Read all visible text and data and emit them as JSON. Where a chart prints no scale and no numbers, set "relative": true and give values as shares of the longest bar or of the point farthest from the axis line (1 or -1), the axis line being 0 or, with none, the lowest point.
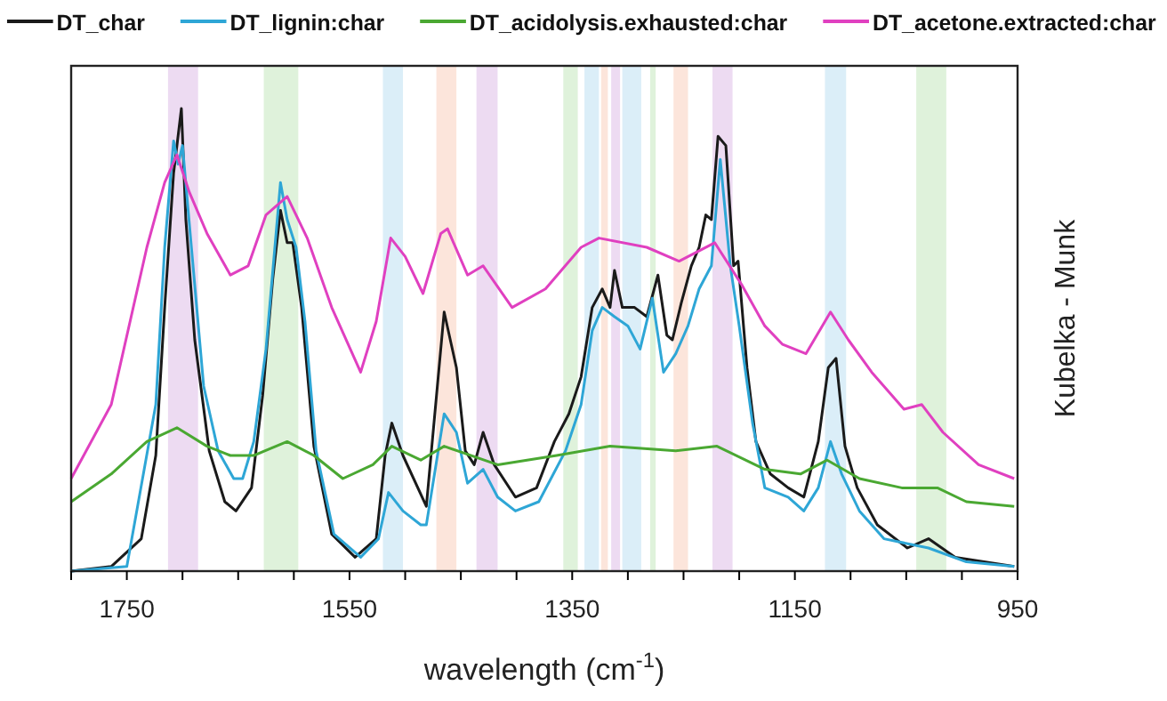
{
  "chart_data": {
    "type": "line",
    "relative": true,
    "xlabel": "wavelength (cm$^{-1}$)",
    "ylabel": "Kubelka - Munk",
    "legend": "top",
    "grid": false,
    "xlim": [
      1800,
      950
    ],
    "xticks": [
      {
        "value": 1800,
        "label": null
      },
      1750,
      {
        "value": 1700,
        "label": null
      },
      {
        "value": 1650,
        "label": null
      },
      {
        "value": 1600,
        "label": null
      },
      1550,
      {
        "value": 1500,
        "label": null
      },
      {
        "value": 1450,
        "label": null
      },
      {
        "value": 1400,
        "label": null
      },
      1350,
      {
        "value": 1300,
        "label": null
      },
      {
        "value": 1250,
        "label": null
      },
      {
        "value": 1200,
        "label": null
      },
      1150,
      {
        "value": 1100,
        "label": null
      },
      {
        "value": 1050,
        "label": null
      },
      {
        "value": 1000,
        "label": null
      },
      950
    ],
    "bands": [
      {
        "axis": "x",
        "from": 1686,
        "to": 1713,
        "color": "#ead5f0"
      },
      {
        "axis": "x",
        "from": 1596,
        "to": 1627,
        "color": "#d9f0d5"
      },
      {
        "axis": "x",
        "from": 1502,
        "to": 1520,
        "color": "#d5ebf7"
      },
      {
        "axis": "x",
        "from": 1454,
        "to": 1472,
        "color": "#fbe0d5"
      },
      {
        "axis": "x",
        "from": 1417,
        "to": 1436,
        "color": "#ead5f0"
      },
      {
        "axis": "x",
        "from": 1345,
        "to": 1358,
        "color": "#d9f0d5"
      },
      {
        "axis": "x",
        "from": 1326,
        "to": 1339,
        "color": "#d5ebf7"
      },
      {
        "axis": "x",
        "from": 1318,
        "to": 1324,
        "color": "#fbe0d5"
      },
      {
        "axis": "x",
        "from": 1307,
        "to": 1315,
        "color": "#ead5f0"
      },
      {
        "axis": "x",
        "from": 1288,
        "to": 1305,
        "color": "#d5ebf7"
      },
      {
        "axis": "x",
        "from": 1275,
        "to": 1280,
        "color": "#d9f0d5"
      },
      {
        "axis": "x",
        "from": 1246,
        "to": 1259,
        "color": "#fbe0d5"
      },
      {
        "axis": "x",
        "from": 1206,
        "to": 1224,
        "color": "#ead5f0"
      },
      {
        "axis": "x",
        "from": 1104,
        "to": 1123,
        "color": "#d5ebf7"
      },
      {
        "axis": "x",
        "from": 1014,
        "to": 1041,
        "color": "#d9f0d5"
      }
    ],
    "series": [
      {
        "name": "DT_char",
        "color": "#1a1a1a",
        "x": [
          1800,
          1764,
          1737,
          1724,
          1716,
          1708,
          1701,
          1697,
          1689,
          1676,
          1662,
          1652,
          1638,
          1628,
          1619,
          1612,
          1606,
          1601,
          1593,
          1582,
          1566,
          1545,
          1526,
          1518,
          1512,
          1502,
          1481,
          1465,
          1454,
          1446,
          1438,
          1430,
          1420,
          1401,
          1382,
          1366,
          1353,
          1342,
          1332,
          1323,
          1316,
          1312,
          1305,
          1294,
          1283,
          1273,
          1265,
          1260,
          1252,
          1243,
          1236,
          1230,
          1225,
          1219,
          1212,
          1205,
          1201,
          1193,
          1185,
          1172,
          1156,
          1142,
          1129,
          1120,
          1113,
          1105,
          1094,
          1076,
          1049,
          1030,
          1006,
          953
        ],
        "values": [
          0,
          0.01,
          0.07,
          0.25,
          0.57,
          0.86,
          1,
          0.76,
          0.5,
          0.26,
          0.15,
          0.13,
          0.18,
          0.38,
          0.63,
          0.78,
          0.71,
          0.71,
          0.57,
          0.27,
          0.08,
          0.03,
          0.07,
          0.25,
          0.32,
          0.25,
          0.14,
          0.56,
          0.44,
          0.26,
          0.23,
          0.3,
          0.23,
          0.16,
          0.18,
          0.28,
          0.34,
          0.42,
          0.57,
          0.61,
          0.57,
          0.65,
          0.57,
          0.57,
          0.55,
          0.64,
          0.51,
          0.5,
          0.58,
          0.66,
          0.7,
          0.77,
          0.76,
          0.94,
          0.92,
          0.66,
          0.67,
          0.44,
          0.28,
          0.21,
          0.18,
          0.16,
          0.28,
          0.44,
          0.46,
          0.27,
          0.18,
          0.1,
          0.05,
          0.07,
          0.03,
          0.01
        ]
      },
      {
        "name": "DT_lignin:char",
        "color": "#2ea6d6",
        "x": [
          1800,
          1750,
          1724,
          1716,
          1708,
          1704,
          1700,
          1692,
          1681,
          1668,
          1654,
          1646,
          1636,
          1625,
          1612,
          1606,
          1598,
          1590,
          1580,
          1564,
          1540,
          1524,
          1515,
          1502,
          1486,
          1481,
          1465,
          1454,
          1444,
          1430,
          1417,
          1401,
          1380,
          1356,
          1342,
          1332,
          1323,
          1312,
          1300,
          1289,
          1278,
          1268,
          1257,
          1246,
          1236,
          1225,
          1217,
          1208,
          1200,
          1188,
          1177,
          1156,
          1142,
          1129,
          1118,
          1108,
          1092,
          1070,
          1030,
          996,
          953
        ],
        "values": [
          0,
          0.01,
          0.36,
          0.7,
          0.93,
          0.88,
          0.92,
          0.7,
          0.4,
          0.26,
          0.2,
          0.2,
          0.28,
          0.48,
          0.84,
          0.76,
          0.7,
          0.54,
          0.26,
          0.08,
          0.03,
          0.07,
          0.17,
          0.13,
          0.1,
          0.1,
          0.34,
          0.3,
          0.19,
          0.22,
          0.16,
          0.13,
          0.15,
          0.26,
          0.36,
          0.52,
          0.57,
          0.55,
          0.53,
          0.48,
          0.59,
          0.43,
          0.47,
          0.53,
          0.61,
          0.66,
          0.89,
          0.66,
          0.53,
          0.32,
          0.18,
          0.16,
          0.13,
          0.18,
          0.28,
          0.21,
          0.13,
          0.07,
          0.05,
          0.02,
          0.01
        ]
      },
      {
        "name": "DT_acidolysis.exhausted:char",
        "color": "#4aa832",
        "x": [
          1800,
          1764,
          1732,
          1705,
          1678,
          1657,
          1636,
          1606,
          1582,
          1556,
          1529,
          1512,
          1486,
          1465,
          1417,
          1364,
          1316,
          1257,
          1220,
          1177,
          1145,
          1121,
          1092,
          1054,
          1022,
          996,
          953
        ],
        "values": [
          0.15,
          0.21,
          0.28,
          0.31,
          0.27,
          0.25,
          0.25,
          0.28,
          0.25,
          0.2,
          0.23,
          0.27,
          0.24,
          0.27,
          0.23,
          0.25,
          0.27,
          0.26,
          0.27,
          0.22,
          0.21,
          0.24,
          0.2,
          0.18,
          0.18,
          0.15,
          0.14
        ]
      },
      {
        "name": "DT_acetone.extracted:char",
        "color": "#e040c0",
        "x": [
          1800,
          1764,
          1732,
          1716,
          1705,
          1694,
          1678,
          1657,
          1641,
          1625,
          1606,
          1588,
          1566,
          1540,
          1526,
          1513,
          1500,
          1484,
          1468,
          1462,
          1444,
          1430,
          1404,
          1374,
          1342,
          1326,
          1283,
          1254,
          1222,
          1198,
          1177,
          1161,
          1140,
          1118,
          1102,
          1081,
          1052,
          1036,
          1017,
          985,
          953
        ],
        "values": [
          0.2,
          0.36,
          0.7,
          0.84,
          0.9,
          0.82,
          0.73,
          0.64,
          0.66,
          0.77,
          0.81,
          0.72,
          0.57,
          0.43,
          0.54,
          0.72,
          0.68,
          0.6,
          0.73,
          0.74,
          0.64,
          0.66,
          0.57,
          0.61,
          0.7,
          0.72,
          0.7,
          0.67,
          0.71,
          0.62,
          0.53,
          0.49,
          0.47,
          0.56,
          0.5,
          0.43,
          0.35,
          0.36,
          0.3,
          0.23,
          0.2
        ]
      }
    ]
  }
}
